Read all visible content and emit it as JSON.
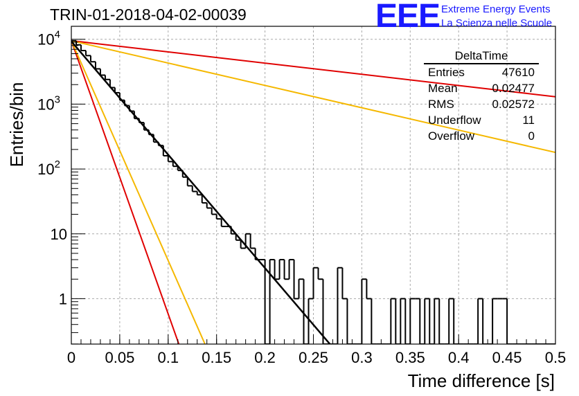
{
  "header": {
    "title": "TRIN-01-2018-04-02-00039",
    "logo_text": "EEE",
    "brand_line1": "Extreme Energy Events",
    "brand_line2": "La Scienza nelle Scuole"
  },
  "stats": {
    "name": "DeltaTime",
    "rows": [
      {
        "label": "Entries",
        "value": "47610"
      },
      {
        "label": "Mean",
        "value": "0.02477"
      },
      {
        "label": "RMS",
        "value": "0.02572"
      },
      {
        "label": "Underflow",
        "value": "11"
      },
      {
        "label": "Overflow",
        "value": "0"
      }
    ]
  },
  "colors": {
    "histogram": "#000000",
    "fit": "#000000",
    "red": "#e00000",
    "orange": "#f5b800",
    "grid": "#aaaaaa"
  },
  "chart_data": {
    "type": "histogram",
    "xlabel": "Time difference [s]",
    "ylabel": "Entries/bin",
    "xlim": [
      0,
      0.5
    ],
    "ylim_log10": [
      -0.7,
      4.2
    ],
    "yscale": "log",
    "grid": true,
    "x_ticks": [
      "0",
      "0.05",
      "0.1",
      "0.15",
      "0.2",
      "0.25",
      "0.3",
      "0.35",
      "0.4",
      "0.45",
      "0.5"
    ],
    "y_ticks": [
      {
        "value": 1,
        "base": "1",
        "exp": ""
      },
      {
        "value": 10,
        "base": "10",
        "exp": ""
      },
      {
        "value": 100,
        "base": "10",
        "exp": "2"
      },
      {
        "value": 1000,
        "base": "10",
        "exp": "3"
      },
      {
        "value": 10000,
        "base": "10",
        "exp": "4"
      }
    ],
    "bin_width": 0.005,
    "histogram": [
      {
        "x": 0.0,
        "y": 9500
      },
      {
        "x": 0.005,
        "y": 8200
      },
      {
        "x": 0.01,
        "y": 6700
      },
      {
        "x": 0.015,
        "y": 5600
      },
      {
        "x": 0.02,
        "y": 4500
      },
      {
        "x": 0.025,
        "y": 3500
      },
      {
        "x": 0.03,
        "y": 2800
      },
      {
        "x": 0.035,
        "y": 2400
      },
      {
        "x": 0.04,
        "y": 1800
      },
      {
        "x": 0.045,
        "y": 1500
      },
      {
        "x": 0.05,
        "y": 1150
      },
      {
        "x": 0.055,
        "y": 950
      },
      {
        "x": 0.06,
        "y": 780
      },
      {
        "x": 0.065,
        "y": 600
      },
      {
        "x": 0.07,
        "y": 520
      },
      {
        "x": 0.075,
        "y": 400
      },
      {
        "x": 0.08,
        "y": 340
      },
      {
        "x": 0.085,
        "y": 260
      },
      {
        "x": 0.09,
        "y": 230
      },
      {
        "x": 0.095,
        "y": 160
      },
      {
        "x": 0.1,
        "y": 130
      },
      {
        "x": 0.105,
        "y": 110
      },
      {
        "x": 0.11,
        "y": 95
      },
      {
        "x": 0.115,
        "y": 75
      },
      {
        "x": 0.12,
        "y": 55
      },
      {
        "x": 0.125,
        "y": 45
      },
      {
        "x": 0.13,
        "y": 40
      },
      {
        "x": 0.135,
        "y": 30
      },
      {
        "x": 0.14,
        "y": 25
      },
      {
        "x": 0.145,
        "y": 20
      },
      {
        "x": 0.15,
        "y": 17
      },
      {
        "x": 0.155,
        "y": 13
      },
      {
        "x": 0.16,
        "y": 13
      },
      {
        "x": 0.165,
        "y": 10
      },
      {
        "x": 0.17,
        "y": 8
      },
      {
        "x": 0.175,
        "y": 6
      },
      {
        "x": 0.18,
        "y": 10
      },
      {
        "x": 0.185,
        "y": 6
      },
      {
        "x": 0.19,
        "y": 4
      },
      {
        "x": 0.195,
        "y": 4
      },
      {
        "x": 0.2,
        "y": 0
      },
      {
        "x": 0.205,
        "y": 4
      },
      {
        "x": 0.21,
        "y": 2
      },
      {
        "x": 0.215,
        "y": 4
      },
      {
        "x": 0.22,
        "y": 2
      },
      {
        "x": 0.225,
        "y": 4
      },
      {
        "x": 0.23,
        "y": 1
      },
      {
        "x": 0.235,
        "y": 2
      },
      {
        "x": 0.24,
        "y": 0
      },
      {
        "x": 0.245,
        "y": 1
      },
      {
        "x": 0.25,
        "y": 3
      },
      {
        "x": 0.255,
        "y": 2
      },
      {
        "x": 0.26,
        "y": 0
      },
      {
        "x": 0.265,
        "y": 0
      },
      {
        "x": 0.27,
        "y": 0
      },
      {
        "x": 0.275,
        "y": 3
      },
      {
        "x": 0.28,
        "y": 1
      },
      {
        "x": 0.285,
        "y": 0
      },
      {
        "x": 0.29,
        "y": 0
      },
      {
        "x": 0.295,
        "y": 0
      },
      {
        "x": 0.3,
        "y": 2
      },
      {
        "x": 0.305,
        "y": 1
      },
      {
        "x": 0.31,
        "y": 0
      },
      {
        "x": 0.315,
        "y": 0
      },
      {
        "x": 0.32,
        "y": 0
      },
      {
        "x": 0.325,
        "y": 0
      },
      {
        "x": 0.33,
        "y": 1
      },
      {
        "x": 0.335,
        "y": 0
      },
      {
        "x": 0.34,
        "y": 1
      },
      {
        "x": 0.345,
        "y": 0
      },
      {
        "x": 0.35,
        "y": 1
      },
      {
        "x": 0.355,
        "y": 1
      },
      {
        "x": 0.36,
        "y": 0
      },
      {
        "x": 0.365,
        "y": 1
      },
      {
        "x": 0.37,
        "y": 0
      },
      {
        "x": 0.375,
        "y": 1
      },
      {
        "x": 0.38,
        "y": 0
      },
      {
        "x": 0.385,
        "y": 0
      },
      {
        "x": 0.39,
        "y": 1
      },
      {
        "x": 0.395,
        "y": 0
      },
      {
        "x": 0.4,
        "y": 0
      },
      {
        "x": 0.405,
        "y": 0
      },
      {
        "x": 0.41,
        "y": 0
      },
      {
        "x": 0.415,
        "y": 0
      },
      {
        "x": 0.42,
        "y": 1
      },
      {
        "x": 0.425,
        "y": 0
      },
      {
        "x": 0.43,
        "y": 0
      },
      {
        "x": 0.435,
        "y": 1
      },
      {
        "x": 0.44,
        "y": 1
      },
      {
        "x": 0.445,
        "y": 1
      },
      {
        "x": 0.45,
        "y": 0
      },
      {
        "x": 0.455,
        "y": 0
      },
      {
        "x": 0.46,
        "y": 0
      },
      {
        "x": 0.465,
        "y": 0
      },
      {
        "x": 0.47,
        "y": 0
      },
      {
        "x": 0.475,
        "y": 0
      },
      {
        "x": 0.48,
        "y": 0
      },
      {
        "x": 0.485,
        "y": 0
      },
      {
        "x": 0.49,
        "y": 0
      },
      {
        "x": 0.495,
        "y": 0
      }
    ],
    "fit": {
      "x": [
        0,
        0.267
      ],
      "y": [
        9300,
        0.2
      ]
    },
    "curves": [
      {
        "color": "red",
        "x": [
          0,
          0.5
        ],
        "y": [
          9500,
          1300
        ]
      },
      {
        "color": "orange",
        "x": [
          0,
          0.5
        ],
        "y": [
          9500,
          180
        ]
      },
      {
        "color": "red",
        "x": [
          0,
          0.111
        ],
        "y": [
          9500,
          0.2
        ]
      },
      {
        "color": "orange",
        "x": [
          0,
          0.138
        ],
        "y": [
          9500,
          0.2
        ]
      }
    ]
  }
}
